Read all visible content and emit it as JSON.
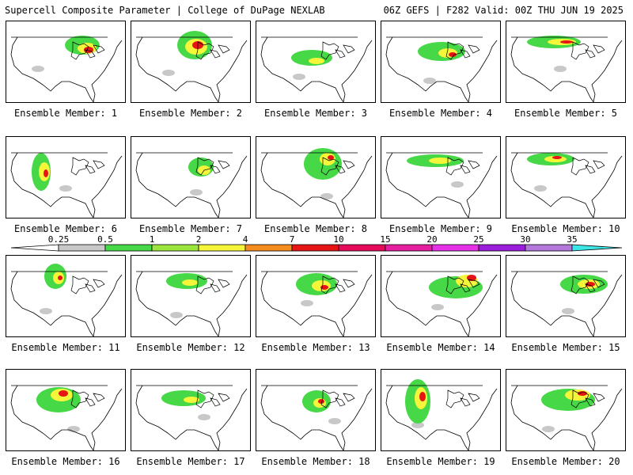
{
  "header": {
    "left": "Supercell Composite Parameter | College of DuPage NEXLAB",
    "right": "06Z GEFS | F282 Valid: 00Z THU JUN 19 2025"
  },
  "legend": {
    "ticks": [
      "0.25",
      "0.5",
      "1",
      "2",
      "4",
      "7",
      "10",
      "15",
      "20",
      "25",
      "30",
      "35"
    ],
    "colors": [
      "#c8c8c8",
      "#46d846",
      "#9be53c",
      "#f5f53a",
      "#f58c1e",
      "#e61414",
      "#e60a5a",
      "#e61ea0",
      "#e632e6",
      "#9b1edc",
      "#b478dc",
      "#3ce6e6"
    ]
  },
  "panels": [
    {
      "label": "Ensemble Member: 1"
    },
    {
      "label": "Ensemble Member: 2"
    },
    {
      "label": "Ensemble Member: 3"
    },
    {
      "label": "Ensemble Member: 4"
    },
    {
      "label": "Ensemble Member: 5"
    },
    {
      "label": "Ensemble Member: 6"
    },
    {
      "label": "Ensemble Member: 7"
    },
    {
      "label": "Ensemble Member: 8"
    },
    {
      "label": "Ensemble Member: 9"
    },
    {
      "label": "Ensemble Member: 10"
    },
    {
      "label": "Ensemble Member: 11"
    },
    {
      "label": "Ensemble Member: 12"
    },
    {
      "label": "Ensemble Member: 13"
    },
    {
      "label": "Ensemble Member: 14"
    },
    {
      "label": "Ensemble Member: 15"
    },
    {
      "label": "Ensemble Member: 16"
    },
    {
      "label": "Ensemble Member: 17"
    },
    {
      "label": "Ensemble Member: 18"
    },
    {
      "label": "Ensemble Member: 19"
    },
    {
      "label": "Ensemble Member: 20"
    }
  ]
}
